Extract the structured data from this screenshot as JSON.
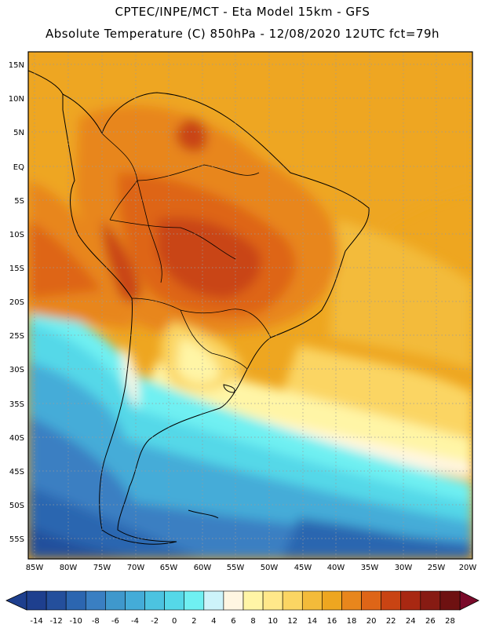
{
  "header": {
    "line1": "CPTEC/INPE/MCT  -   Eta Model 15km  -  GFS",
    "line2": "Absolute Temperature (C) 850hPa  -  12/08/2020 12UTC fct=79h"
  },
  "map": {
    "lat_labels": [
      "15N",
      "10N",
      "5N",
      "EQ",
      "5S",
      "10S",
      "15S",
      "20S",
      "25S",
      "30S",
      "35S",
      "40S",
      "45S",
      "50S",
      "55S"
    ],
    "lon_labels": [
      "85W",
      "80W",
      "75W",
      "70W",
      "65W",
      "60W",
      "55W",
      "50W",
      "45W",
      "40W",
      "35W",
      "30W",
      "25W",
      "20W"
    ]
  },
  "colorbar": {
    "labels": [
      "-14",
      "-12",
      "-10",
      "-8",
      "-6",
      "-4",
      "-2",
      "0",
      "2",
      "4",
      "6",
      "8",
      "10",
      "12",
      "14",
      "16",
      "18",
      "20",
      "22",
      "24",
      "26",
      "28"
    ],
    "colors": [
      "#1e3f8e",
      "#244f9c",
      "#2c66b0",
      "#3a7fc2",
      "#3f98cc",
      "#44acd8",
      "#4cc3e0",
      "#55d8e8",
      "#6ff0f2",
      "#cdf3fa",
      "#fff6e2",
      "#fff5a6",
      "#ffe88a",
      "#fbd563",
      "#f3bb3a",
      "#eea620",
      "#e8861c",
      "#de6517",
      "#c94413",
      "#a82812",
      "#871b13",
      "#6e1111"
    ]
  }
}
